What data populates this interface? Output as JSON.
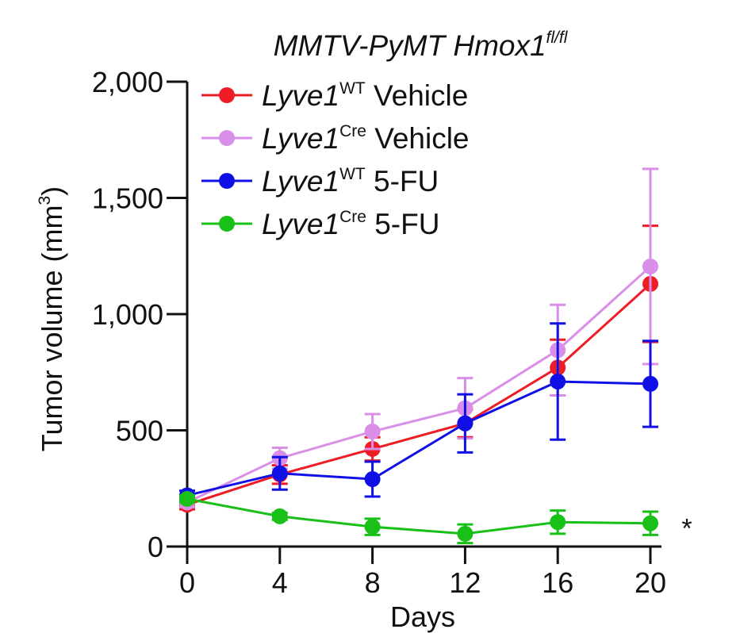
{
  "chart_data": {
    "type": "line",
    "title": {
      "main": "MMTV-PyMT Hmox1",
      "sup": "fl/fl"
    },
    "xlabel": "Days",
    "ylabel": {
      "main": "Tumor volume (mm",
      "sup": "3",
      "close": ")"
    },
    "x": [
      0,
      4,
      8,
      12,
      16,
      20
    ],
    "x_ticks": [
      "0",
      "4",
      "8",
      "12",
      "16",
      "20"
    ],
    "xlim": [
      0,
      20
    ],
    "y_ticks": [
      {
        "value": 0,
        "label": "0"
      },
      {
        "value": 500,
        "label": "500"
      },
      {
        "value": 1000,
        "label": "1,000"
      },
      {
        "value": 1500,
        "label": "1,500"
      },
      {
        "value": 2000,
        "label": "2,000"
      }
    ],
    "ylim": [
      0,
      2000
    ],
    "grid": false,
    "legend_position": "top-left",
    "series": [
      {
        "name": "Lyve1WT Vehicle",
        "label_main": "Lyve1",
        "label_sup": "WT",
        "label_rest": "Vehicle",
        "color": "#ee1c25",
        "values": [
          180,
          310,
          420,
          530,
          770,
          1130
        ],
        "err": [
          20,
          40,
          50,
          60,
          120,
          250
        ]
      },
      {
        "name": "Lyve1Cre Vehicle",
        "label_main": "Lyve1",
        "label_sup": "Cre",
        "label_rest": "Vehicle",
        "color": "#d98ee8",
        "values": [
          190,
          380,
          495,
          595,
          845,
          1205
        ],
        "err": [
          20,
          45,
          75,
          130,
          195,
          420
        ]
      },
      {
        "name": "Lyve1WT 5-FU",
        "label_main": "Lyve1",
        "label_sup": "WT",
        "label_rest": "5-FU",
        "color": "#1010e6",
        "values": [
          220,
          315,
          290,
          530,
          710,
          700
        ],
        "err": [
          20,
          70,
          75,
          125,
          250,
          185
        ]
      },
      {
        "name": "Lyve1Cre 5-FU",
        "label_main": "Lyve1",
        "label_sup": "Cre",
        "label_rest": "5-FU",
        "color": "#18c018",
        "values": [
          205,
          130,
          85,
          55,
          105,
          100
        ],
        "err": [
          15,
          15,
          35,
          40,
          50,
          50
        ]
      }
    ],
    "annotations": [
      {
        "text": "*",
        "series": "Lyve1Cre 5-FU"
      }
    ]
  }
}
